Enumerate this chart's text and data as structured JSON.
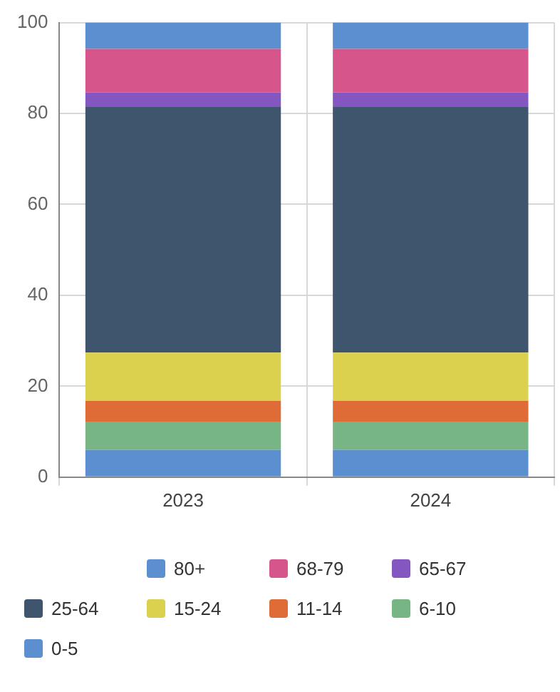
{
  "chart_data": {
    "type": "bar",
    "stacked": true,
    "categories": [
      "2023",
      "2024"
    ],
    "series": [
      {
        "name": "0-5",
        "color": "#5b8fd0",
        "values": [
          6.0,
          6.0
        ]
      },
      {
        "name": "6-10",
        "color": "#77b584",
        "values": [
          6.2,
          6.2
        ]
      },
      {
        "name": "11-14",
        "color": "#df6b37",
        "values": [
          4.6,
          4.6
        ]
      },
      {
        "name": "15-24",
        "color": "#dcd14f",
        "values": [
          10.6,
          10.6
        ]
      },
      {
        "name": "25-64",
        "color": "#3f546d",
        "values": [
          54.0,
          54.0
        ]
      },
      {
        "name": "65-67",
        "color": "#8456c0",
        "values": [
          3.2,
          3.2
        ]
      },
      {
        "name": "68-79",
        "color": "#d6558a",
        "values": [
          9.6,
          9.6
        ]
      },
      {
        "name": "80+",
        "color": "#5b8fd0",
        "values": [
          5.8,
          5.8
        ]
      }
    ],
    "ylim": [
      0,
      100
    ],
    "yticks": [
      0,
      20,
      40,
      60,
      80,
      100
    ],
    "grid": true,
    "legend": "bottom"
  }
}
